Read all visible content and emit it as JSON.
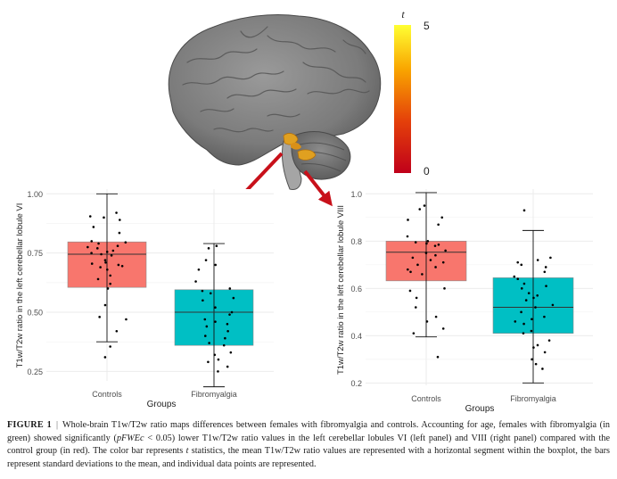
{
  "colorbar": {
    "title": "t",
    "max_label": "5",
    "min_label": "0",
    "range": [
      0,
      5
    ],
    "colors": [
      "#c0001a",
      "#e4400a",
      "#f9a500",
      "#ffff33"
    ]
  },
  "colors": {
    "controls": "#f8766d",
    "fibromyalgia": "#00bfc4",
    "brain": "#8a8a8a",
    "arrow": "#c8101a",
    "cluster": "#e0a020"
  },
  "chart_data": [
    {
      "type": "box",
      "title": "",
      "xlabel": "Groups",
      "ylabel": "T1w/T2w ratio in the left cerebellar lobule VI",
      "ylim": [
        0.21,
        1.02
      ],
      "yticks": [
        "0.25",
        "0.50",
        "0.75",
        "1.00"
      ],
      "ytick_values": [
        0.25,
        0.5,
        0.75,
        1.0
      ],
      "categories": [
        "Controls",
        "Fibromyalgia"
      ],
      "grid": true,
      "series": [
        {
          "q1": 0.605,
          "median": 0.745,
          "q3": 0.797,
          "whisker_low": 0.375,
          "whisker_high": 1.0,
          "points": [
            0.92,
            0.905,
            0.9,
            0.89,
            0.86,
            0.835,
            0.8,
            0.795,
            0.79,
            0.78,
            0.775,
            0.77,
            0.76,
            0.755,
            0.75,
            0.745,
            0.74,
            0.72,
            0.71,
            0.705,
            0.7,
            0.695,
            0.69,
            0.68,
            0.655,
            0.64,
            0.62,
            0.6,
            0.53,
            0.48,
            0.47,
            0.42,
            0.355,
            0.31
          ]
        },
        {
          "q1": 0.36,
          "median": 0.5,
          "q3": 0.595,
          "whisker_low": 0.185,
          "whisker_high": 0.79,
          "points": [
            0.78,
            0.77,
            0.72,
            0.7,
            0.68,
            0.63,
            0.6,
            0.59,
            0.58,
            0.56,
            0.55,
            0.52,
            0.5,
            0.49,
            0.47,
            0.46,
            0.45,
            0.44,
            0.42,
            0.4,
            0.39,
            0.37,
            0.36,
            0.33,
            0.32,
            0.3,
            0.29,
            0.27,
            0.25
          ]
        }
      ]
    },
    {
      "type": "box",
      "title": "",
      "xlabel": "Groups",
      "ylabel": "T1w/T2w ratio in the left cerebellar lobule VIII",
      "ylim": [
        0.19,
        1.02
      ],
      "yticks": [
        "0.2",
        "0.4",
        "0.6",
        "0.8",
        "1.0"
      ],
      "ytick_values": [
        0.2,
        0.4,
        0.6,
        0.8,
        1.0
      ],
      "categories": [
        "Controls",
        "Fibromyalgia"
      ],
      "grid": true,
      "series": [
        {
          "q1": 0.632,
          "median": 0.753,
          "q3": 0.8,
          "whisker_low": 0.395,
          "whisker_high": 1.005,
          "points": [
            0.95,
            0.935,
            0.9,
            0.89,
            0.87,
            0.82,
            0.8,
            0.795,
            0.79,
            0.785,
            0.78,
            0.76,
            0.75,
            0.74,
            0.73,
            0.72,
            0.71,
            0.7,
            0.69,
            0.68,
            0.67,
            0.66,
            0.6,
            0.59,
            0.56,
            0.52,
            0.48,
            0.46,
            0.43,
            0.41,
            0.31
          ]
        },
        {
          "q1": 0.41,
          "median": 0.52,
          "q3": 0.645,
          "whisker_low": 0.2,
          "whisker_high": 0.845,
          "points": [
            0.93,
            0.73,
            0.72,
            0.71,
            0.7,
            0.69,
            0.67,
            0.65,
            0.64,
            0.62,
            0.61,
            0.6,
            0.58,
            0.57,
            0.56,
            0.55,
            0.53,
            0.52,
            0.5,
            0.48,
            0.47,
            0.46,
            0.45,
            0.42,
            0.41,
            0.38,
            0.36,
            0.35,
            0.33,
            0.3,
            0.28,
            0.26
          ]
        }
      ]
    }
  ],
  "caption": {
    "label": "FIGURE 1",
    "separator": "|",
    "part1": "Whole-brain T1w/T2w ratio maps differences between females with fibromyalgia and controls. Accounting for age, females with fibromyalgia (in green) showed significantly (",
    "italic_stat": "pFWEc",
    "part2": " < 0.05) lower T1w/T2w ratio values in the left cerebellar lobules VI (left panel) and VIII (right panel) compared with the control group (in red). The color bar represents ",
    "italic_t": "t",
    "part3": " statistics, the mean T1w/T2w ratio values are represented with a horizontal segment within the boxplot, the bars represent standard deviations to the mean, and individual data points are represented."
  }
}
